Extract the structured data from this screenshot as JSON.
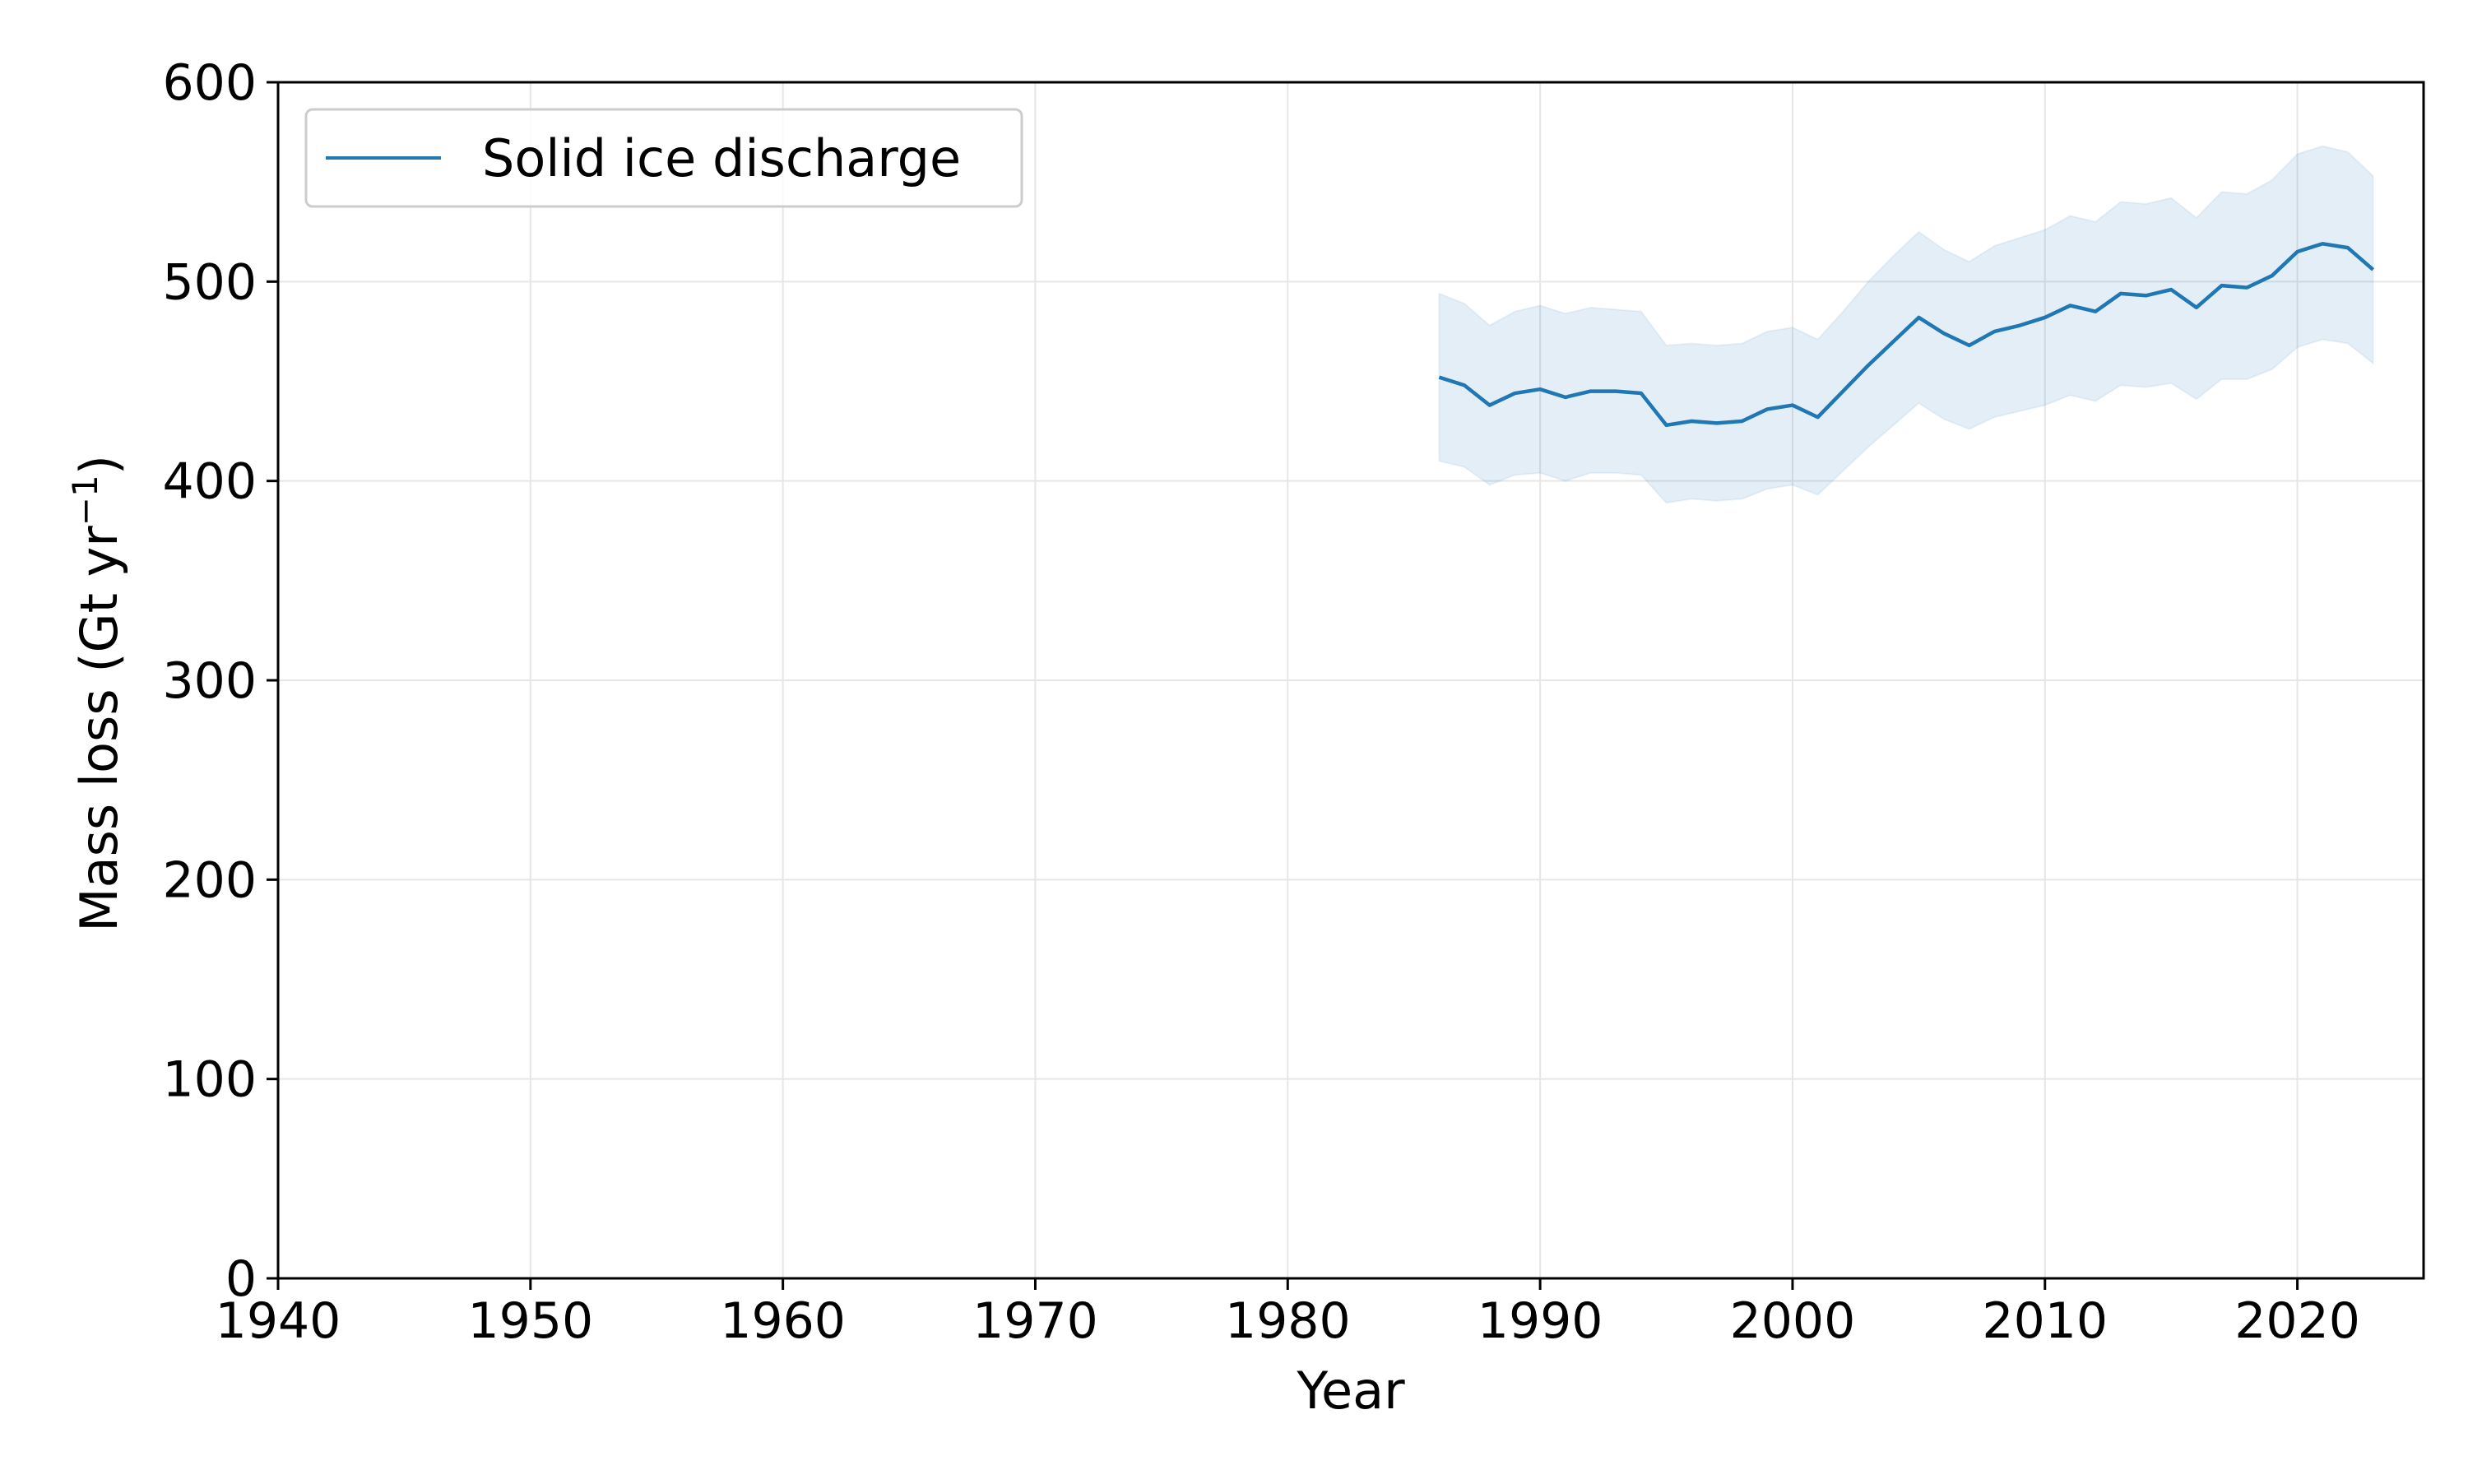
{
  "chart_data": {
    "type": "line",
    "title": "",
    "xlabel": "Year",
    "ylabel_main": "Mass loss (Gt yr",
    "ylabel_sup": "−1",
    "ylabel_close": ")",
    "xlim": [
      1940,
      2025
    ],
    "ylim": [
      0,
      600
    ],
    "xticks": [
      1940,
      1950,
      1960,
      1970,
      1980,
      1990,
      2000,
      2010,
      2020
    ],
    "yticks": [
      0,
      100,
      200,
      300,
      400,
      500,
      600
    ],
    "grid": true,
    "legend_position": "top-left",
    "colors": {
      "line": "#1f77b4",
      "band": "#1f77b4"
    },
    "series": [
      {
        "name": "Solid ice discharge",
        "x": [
          1986,
          1987,
          1988,
          1989,
          1990,
          1991,
          1992,
          1993,
          1994,
          1995,
          1996,
          1997,
          1998,
          1999,
          2000,
          2001,
          2002,
          2003,
          2004,
          2005,
          2006,
          2007,
          2008,
          2009,
          2010,
          2011,
          2012,
          2013,
          2014,
          2015,
          2016,
          2017,
          2018,
          2019,
          2020,
          2021,
          2022,
          2023
        ],
        "y": [
          452,
          448,
          438,
          444,
          446,
          442,
          445,
          445,
          444,
          428,
          430,
          429,
          430,
          436,
          438,
          432,
          445,
          458,
          470,
          482,
          474,
          468,
          475,
          478,
          482,
          488,
          485,
          494,
          493,
          496,
          487,
          498,
          497,
          503,
          515,
          519,
          517,
          506
        ],
        "lower": [
          410,
          407,
          398,
          403,
          404,
          400,
          404,
          404,
          403,
          389,
          391,
          390,
          391,
          396,
          398,
          393,
          405,
          417,
          428,
          439,
          431,
          426,
          432,
          435,
          438,
          443,
          440,
          448,
          447,
          449,
          441,
          451,
          451,
          456,
          467,
          471,
          469,
          459
        ],
        "upper": [
          494,
          489,
          478,
          485,
          488,
          484,
          487,
          486,
          485,
          468,
          469,
          468,
          469,
          475,
          477,
          471,
          485,
          500,
          513,
          525,
          516,
          510,
          518,
          522,
          526,
          533,
          530,
          540,
          539,
          542,
          532,
          545,
          544,
          551,
          564,
          568,
          565,
          553
        ]
      }
    ]
  }
}
